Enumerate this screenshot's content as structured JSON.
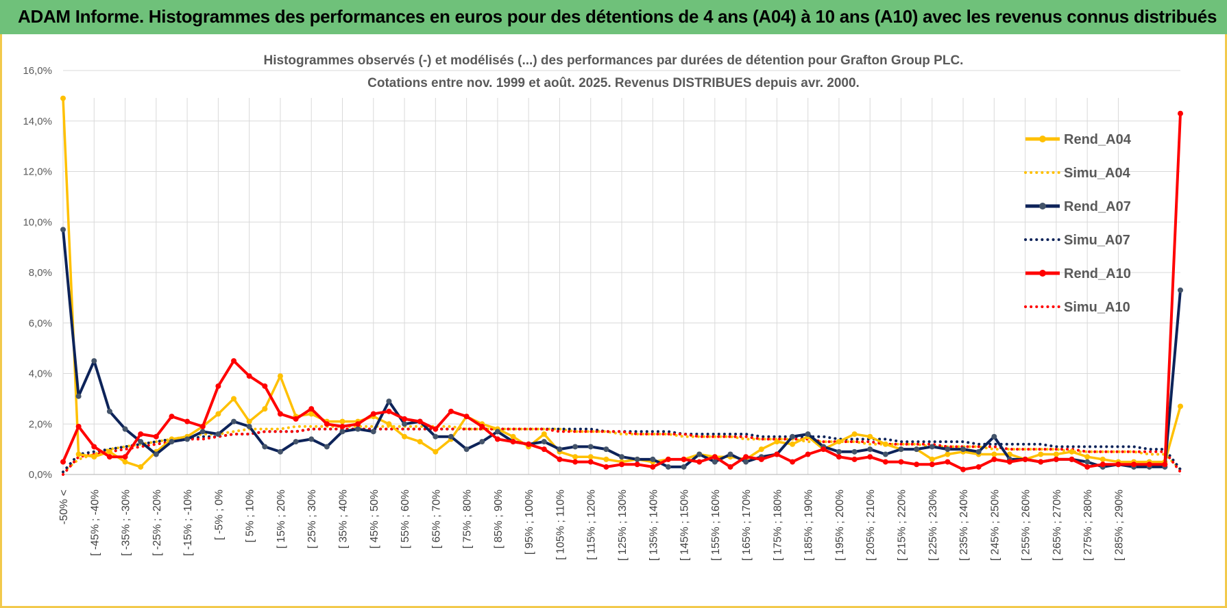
{
  "banner": {
    "title": "ADAM Informe. Histogrammes des performances en euros pour des détentions de 4 ans (A04) à 10 ans (A10) avec les revenus connus distribués"
  },
  "colors": {
    "banner": "#6fc17a",
    "border": "#f2c94c",
    "A04": "#ffc000",
    "A07": "#0d2359",
    "A10": "#ff0000",
    "grid": "#d9d9d9"
  },
  "chart_data": {
    "type": "line",
    "title": "Histogrammes observés (-) et modélisés (...) des performances par durées de détention pour Grafton Group PLC.",
    "subtitle": "Cotations entre nov. 1999 et août. 2025. Revenus DISTRIBUES depuis avr. 2000.",
    "xlabel": "",
    "ylabel": "",
    "ylim": [
      0,
      16
    ],
    "yticks": [
      "0,0%",
      "2,0%",
      "4,0%",
      "6,0%",
      "8,0%",
      "10,0%",
      "12,0%",
      "14,0%",
      "16,0%"
    ],
    "grid": true,
    "legend_position": "right",
    "xtick_labels": [
      "-50% <",
      "[ -45% ; -40%",
      "[ -35% ; -30%",
      "[ -25% ; -20%",
      "[ -15% ; -10%",
      "[ -5% ; 0%",
      "[ 5% ; 10%",
      "[ 15% ; 20%",
      "[ 25% ; 30%",
      "[ 35% ; 40%",
      "[ 45% ; 50%",
      "[ 55% ; 60%",
      "[ 65% ; 70%",
      "[ 75% ; 80%",
      "[ 85% ; 90%",
      "[ 95% ; 100%",
      "[ 105% ; 110%",
      "[ 115% ; 120%",
      "[ 125% ; 130%",
      "[ 135% ; 140%",
      "[ 145% ; 150%",
      "[ 155% ; 160%",
      "[ 165% ; 170%",
      "[ 175% ; 180%",
      "[ 185% ; 190%",
      "[ 195% ; 200%",
      "[ 205% ; 210%",
      "[ 215% ; 220%",
      "[ 225% ; 230%",
      "[ 235% ; 240%",
      "[ 245% ; 250%",
      "[ 255% ; 260%",
      "[ 265% ; 270%",
      "[ 275% ; 280%",
      "[ 285% ; 290%"
    ],
    "series": [
      {
        "name": "Rend_A04",
        "style": "solid",
        "color": "#ffc000",
        "values": [
          14.9,
          0.8,
          0.7,
          0.9,
          0.5,
          0.3,
          0.9,
          1.4,
          1.5,
          1.9,
          2.4,
          3.0,
          2.1,
          2.6,
          3.9,
          2.3,
          2.4,
          2.1,
          2.1,
          2.1,
          2.3,
          2.0,
          1.5,
          1.3,
          0.9,
          1.4,
          2.3,
          2.0,
          1.8,
          1.5,
          1.1,
          1.6,
          0.9,
          0.7,
          0.7,
          0.6,
          0.5,
          0.6,
          0.5,
          0.6,
          0.6,
          0.8,
          0.7,
          0.7,
          0.6,
          1.0,
          1.3,
          1.2,
          1.5,
          1.0,
          1.3,
          1.6,
          1.5,
          1.2,
          1.0,
          1.0,
          0.6,
          0.8,
          0.9,
          0.8,
          0.8,
          0.8,
          0.6,
          0.8,
          0.8,
          0.9,
          0.7,
          0.6,
          0.5,
          0.5,
          0.5,
          0.5,
          2.7
        ]
      },
      {
        "name": "Simu_A04",
        "style": "dotted",
        "color": "#ffc000",
        "values": [
          0.1,
          0.6,
          0.8,
          1.0,
          1.1,
          1.2,
          1.3,
          1.4,
          1.5,
          1.6,
          1.6,
          1.7,
          1.8,
          1.8,
          1.8,
          1.9,
          1.9,
          1.9,
          1.9,
          1.9,
          1.9,
          1.9,
          1.9,
          1.9,
          1.9,
          1.9,
          1.8,
          1.8,
          1.8,
          1.8,
          1.8,
          1.8,
          1.8,
          1.7,
          1.7,
          1.7,
          1.6,
          1.6,
          1.6,
          1.6,
          1.5,
          1.5,
          1.5,
          1.5,
          1.4,
          1.4,
          1.4,
          1.4,
          1.3,
          1.3,
          1.3,
          1.3,
          1.2,
          1.2,
          1.2,
          1.2,
          1.1,
          1.1,
          1.1,
          1.1,
          1.0,
          1.0,
          1.0,
          1.0,
          1.0,
          0.9,
          0.9,
          0.9,
          0.9,
          0.9,
          0.8,
          0.8,
          0.2
        ]
      },
      {
        "name": "Rend_A07",
        "style": "solid",
        "color": "#0d2359",
        "values": [
          9.7,
          3.1,
          4.5,
          2.5,
          1.8,
          1.3,
          0.8,
          1.3,
          1.4,
          1.7,
          1.6,
          2.1,
          1.9,
          1.1,
          0.9,
          1.3,
          1.4,
          1.1,
          1.7,
          1.8,
          1.7,
          2.9,
          2.0,
          2.1,
          1.5,
          1.5,
          1.0,
          1.3,
          1.7,
          1.3,
          1.2,
          1.3,
          1.0,
          1.1,
          1.1,
          1.0,
          0.7,
          0.6,
          0.6,
          0.3,
          0.3,
          0.8,
          0.5,
          0.8,
          0.5,
          0.7,
          0.8,
          1.5,
          1.6,
          1.1,
          0.9,
          0.9,
          1.0,
          0.8,
          1.0,
          1.0,
          1.1,
          1.0,
          1.0,
          0.9,
          1.5,
          0.6,
          0.6,
          0.5,
          0.6,
          0.6,
          0.5,
          0.3,
          0.4,
          0.3,
          0.3,
          0.3,
          7.3
        ]
      },
      {
        "name": "Simu_A07",
        "style": "dotted",
        "color": "#0d2359",
        "values": [
          0.1,
          0.8,
          0.9,
          1.0,
          1.1,
          1.2,
          1.3,
          1.4,
          1.4,
          1.5,
          1.5,
          1.6,
          1.6,
          1.7,
          1.7,
          1.7,
          1.8,
          1.8,
          1.8,
          1.8,
          1.8,
          1.8,
          1.8,
          1.8,
          1.8,
          1.8,
          1.8,
          1.8,
          1.8,
          1.8,
          1.8,
          1.8,
          1.8,
          1.8,
          1.8,
          1.7,
          1.7,
          1.7,
          1.7,
          1.7,
          1.6,
          1.6,
          1.6,
          1.6,
          1.6,
          1.5,
          1.5,
          1.5,
          1.5,
          1.5,
          1.4,
          1.4,
          1.4,
          1.4,
          1.3,
          1.3,
          1.3,
          1.3,
          1.3,
          1.2,
          1.2,
          1.2,
          1.2,
          1.2,
          1.1,
          1.1,
          1.1,
          1.1,
          1.1,
          1.1,
          1.0,
          1.0,
          0.2
        ]
      },
      {
        "name": "Rend_A10",
        "style": "solid",
        "color": "#ff0000",
        "values": [
          0.5,
          1.9,
          1.1,
          0.7,
          0.7,
          1.6,
          1.5,
          2.3,
          2.1,
          1.9,
          3.5,
          4.5,
          3.9,
          3.5,
          2.4,
          2.2,
          2.6,
          2.0,
          1.9,
          2.0,
          2.4,
          2.5,
          2.2,
          2.1,
          1.8,
          2.5,
          2.3,
          1.9,
          1.4,
          1.3,
          1.2,
          1.0,
          0.6,
          0.5,
          0.5,
          0.3,
          0.4,
          0.4,
          0.3,
          0.6,
          0.6,
          0.5,
          0.7,
          0.3,
          0.7,
          0.6,
          0.8,
          0.5,
          0.8,
          1.0,
          0.7,
          0.6,
          0.7,
          0.5,
          0.5,
          0.4,
          0.4,
          0.5,
          0.2,
          0.3,
          0.6,
          0.5,
          0.6,
          0.5,
          0.6,
          0.6,
          0.3,
          0.4,
          0.4,
          0.4,
          0.4,
          0.4,
          14.3
        ]
      },
      {
        "name": "Simu_A10",
        "style": "dotted",
        "color": "#ff0000",
        "values": [
          0.0,
          0.7,
          0.8,
          0.9,
          1.0,
          1.1,
          1.2,
          1.3,
          1.4,
          1.4,
          1.5,
          1.6,
          1.6,
          1.7,
          1.7,
          1.7,
          1.8,
          1.8,
          1.8,
          1.8,
          1.8,
          1.8,
          1.8,
          1.8,
          1.8,
          1.8,
          1.8,
          1.8,
          1.8,
          1.8,
          1.8,
          1.8,
          1.7,
          1.7,
          1.7,
          1.7,
          1.7,
          1.6,
          1.6,
          1.6,
          1.6,
          1.5,
          1.5,
          1.5,
          1.5,
          1.4,
          1.4,
          1.4,
          1.4,
          1.3,
          1.3,
          1.3,
          1.3,
          1.2,
          1.2,
          1.2,
          1.2,
          1.1,
          1.1,
          1.1,
          1.1,
          1.0,
          1.0,
          1.0,
          1.0,
          1.0,
          0.9,
          0.9,
          0.9,
          0.9,
          0.9,
          0.9,
          0.1
        ]
      }
    ]
  }
}
